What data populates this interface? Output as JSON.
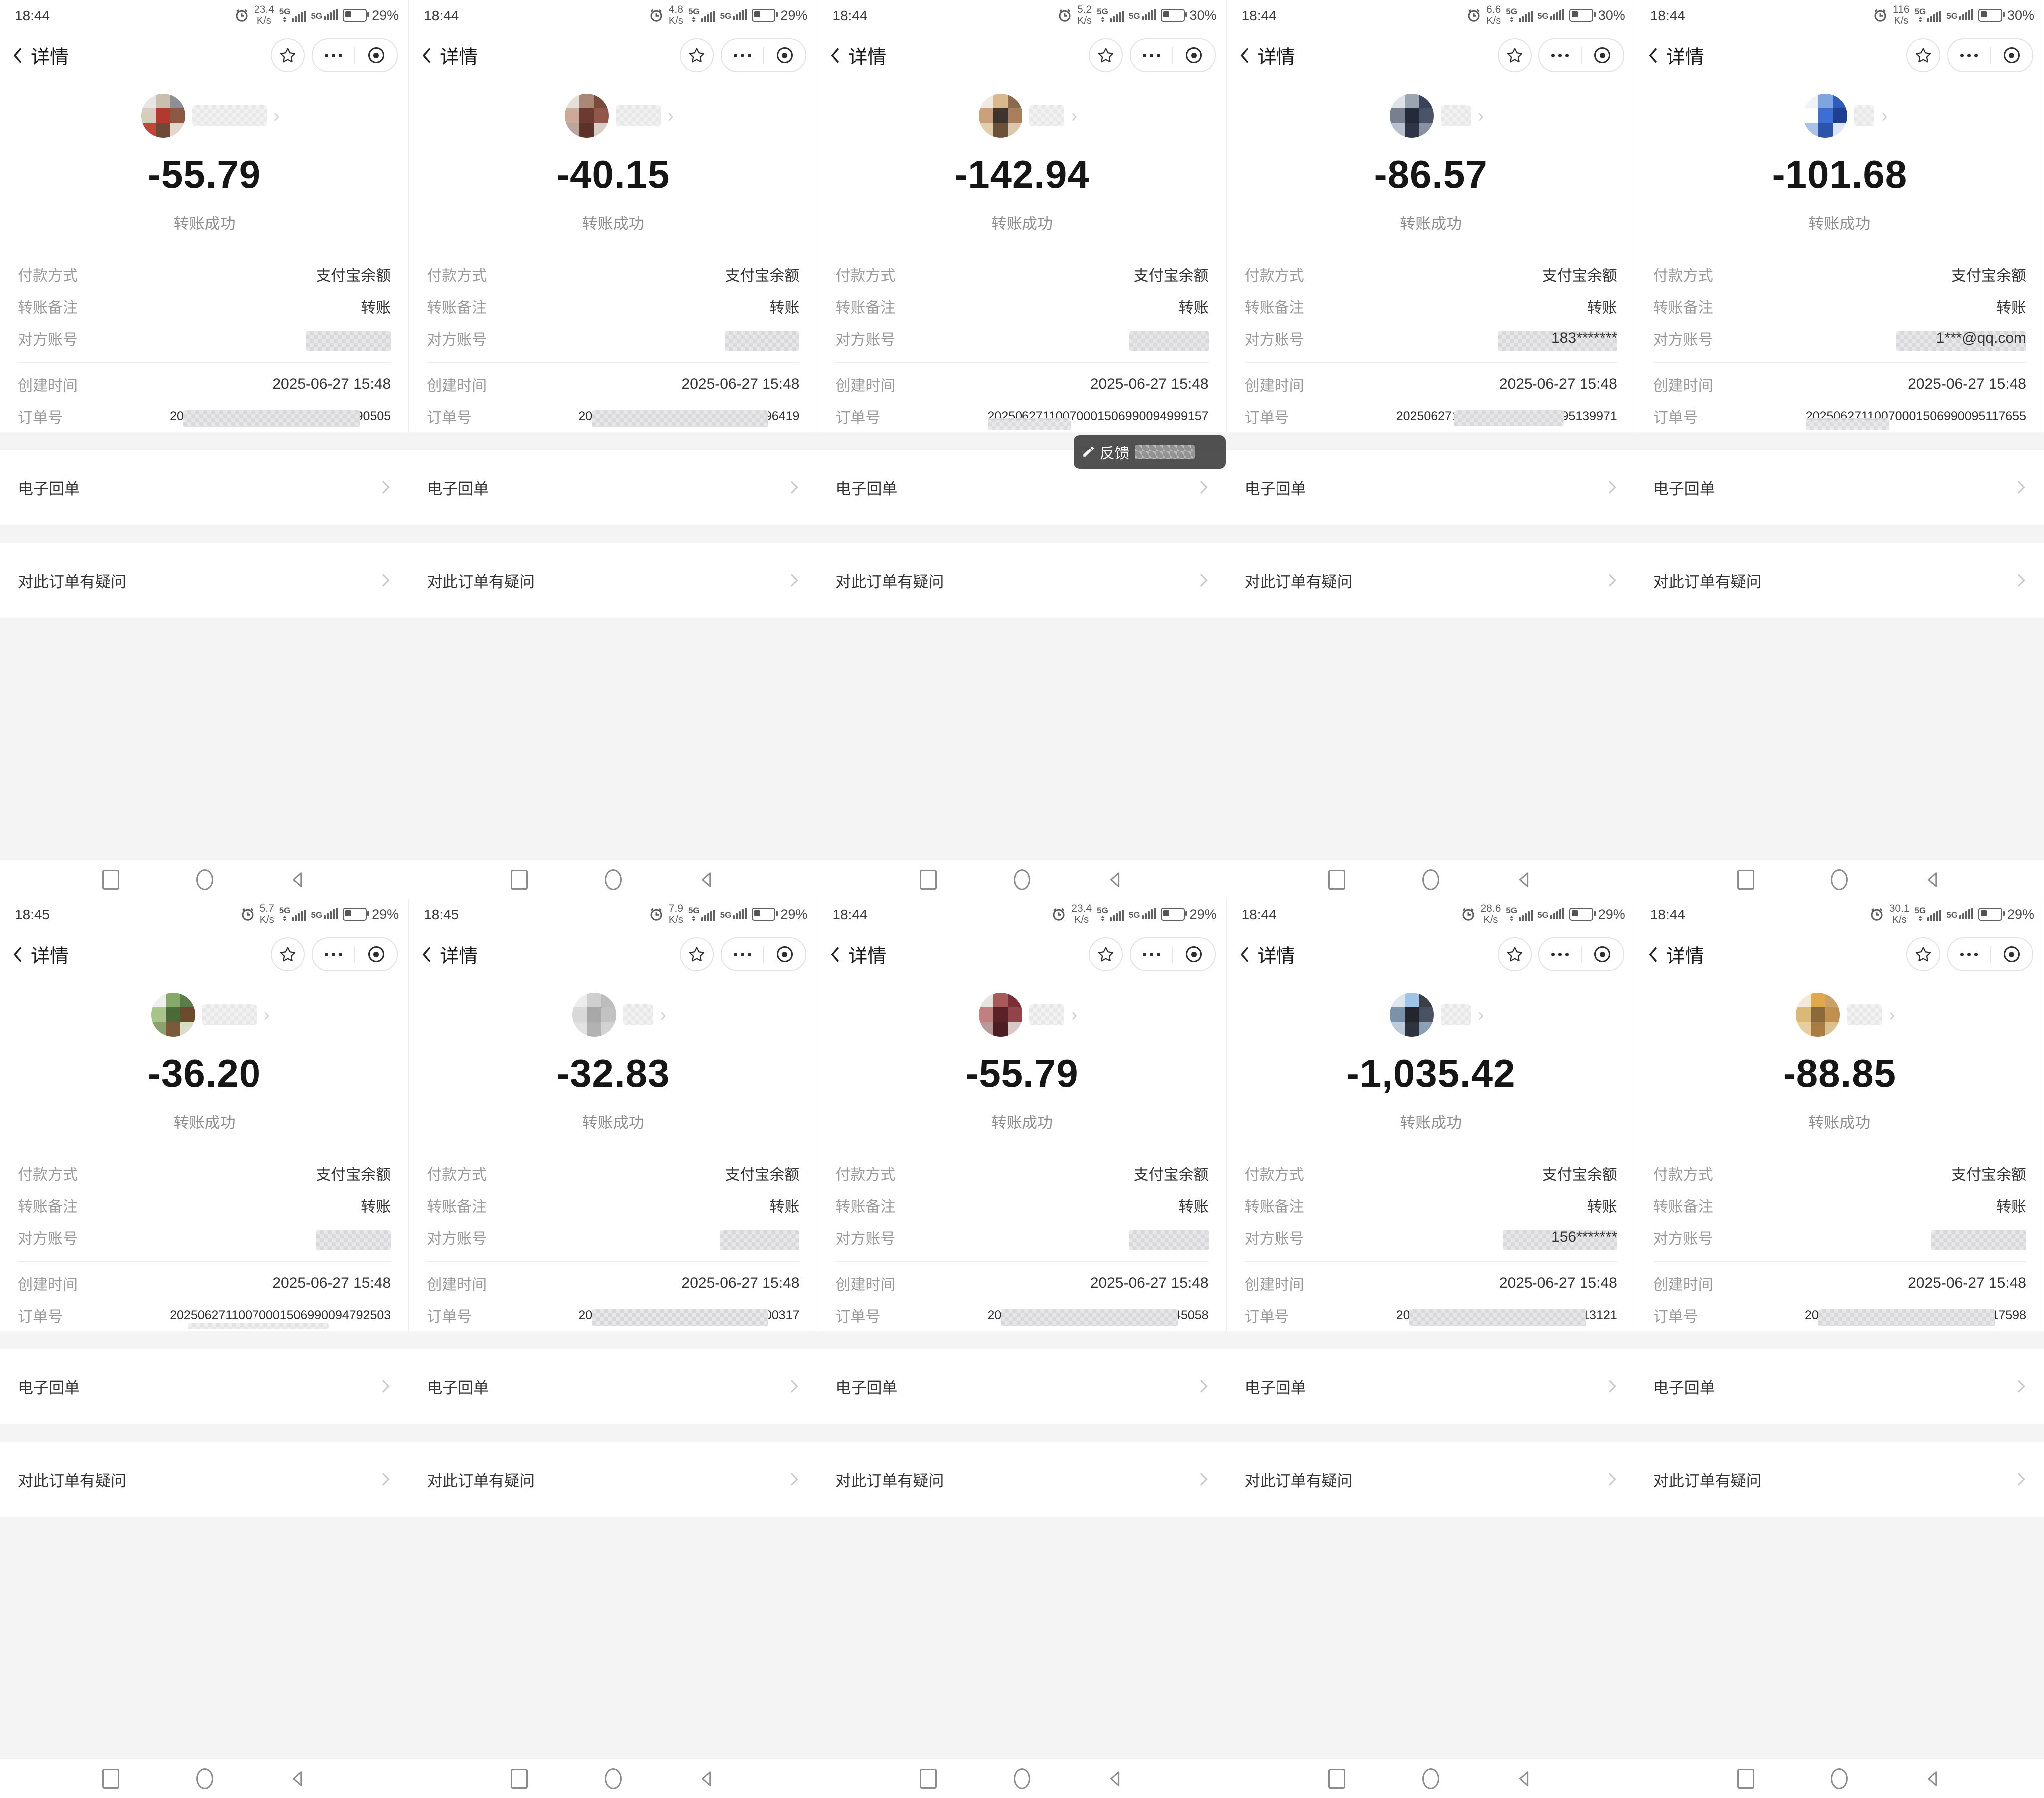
{
  "shared": {
    "nav": {
      "back_label": "详情",
      "speed_unit": "K/s",
      "net": "5G"
    },
    "detail": {
      "status_label": "转账成功",
      "payment_method_label": "付款方式",
      "payment_method_value": "支付宝余额",
      "note_label": "转账备注",
      "note_value": "转账",
      "account_label": "对方账号",
      "created_label": "创建时间",
      "created_value": "2025-06-27 15:48",
      "order_label": "订单号"
    },
    "actions": {
      "receipt_label": "电子回单",
      "question_label": "对此订单有疑问"
    },
    "feedback": {
      "label": "反馈"
    },
    "colors": {
      "accent_gray_bg": "#f4f4f5",
      "text_dark": "#1a1a1a",
      "text_gray": "#9a9a9a",
      "feedback_bg": "#3e3e3e"
    }
  },
  "screens": [
    {
      "time": "18:44",
      "speed": "23.4",
      "battery": "29%",
      "amount": "-55.79",
      "account_text": "",
      "account_blur_w": 170,
      "order_no": "20250627110070001506990094790505",
      "order_blur": "heavy",
      "name_blur_w": 150,
      "feedback": false,
      "avatar": [
        "#e8e6e2",
        "#c9bfae",
        "#8c8f96",
        "#d6cdbd",
        "#b03a2e",
        "#8a5a44",
        "#c24538",
        "#6e4a36",
        "#e0d8cc"
      ]
    },
    {
      "time": "18:44",
      "speed": "4.8",
      "battery": "29%",
      "amount": "-40.15",
      "account_text": "",
      "account_blur_w": 150,
      "order_no": "20250627110070001506990084796419",
      "order_blur": "heavy",
      "name_blur_w": 90,
      "feedback": false,
      "avatar": [
        "#e5e0da",
        "#aa8878",
        "#7a4a3c",
        "#ccaa99",
        "#6b3a30",
        "#93564a",
        "#b8a79a",
        "#5c3228",
        "#d8cec6"
      ]
    },
    {
      "time": "18:44",
      "speed": "5.2",
      "battery": "30%",
      "amount": "-142.94",
      "account_text": "",
      "account_blur_w": 160,
      "order_no": "20250627110070001506990094999157",
      "order_blur": "left",
      "name_blur_w": 70,
      "feedback": true,
      "avatar": [
        "#efe9e1",
        "#d9b98c",
        "#8a6a4f",
        "#c9a17b",
        "#3d342e",
        "#a87f5c",
        "#e3cfae",
        "#6b5138",
        "#d9c8ae"
      ]
    },
    {
      "time": "18:44",
      "speed": "6.6",
      "battery": "30%",
      "amount": "-86.57",
      "account_text": "183*******",
      "account_blur_w": 240,
      "order_no": "20250627110070001506990095139971",
      "order_blur": "mid",
      "name_blur_w": 60,
      "feedback": false,
      "avatar": [
        "#dfe3e8",
        "#9aa4b2",
        "#39435a",
        "#76808f",
        "#232a3a",
        "#4a5468",
        "#b8c0cc",
        "#2e3548",
        "#8892a2"
      ]
    },
    {
      "time": "18:44",
      "speed": "116",
      "battery": "30%",
      "amount": "-101.68",
      "account_text": "1***@qq.com",
      "account_blur_w": 260,
      "order_no": "20250627110070001506990095117655",
      "order_blur": "left",
      "name_blur_w": 40,
      "feedback": false,
      "avatar": [
        "#eef2fa",
        "#7fa4e0",
        "#2f5cb8",
        "#ffffff",
        "#3b6fd4",
        "#1e3f8f",
        "#a9c2ec",
        "#2c54aa",
        "#dce6f8"
      ]
    },
    {
      "time": "18:45",
      "speed": "5.7",
      "battery": "29%",
      "amount": "-36.20",
      "account_text": "",
      "account_blur_w": 150,
      "order_no": "20250627110070001506990094792503",
      "order_blur": "none",
      "name_blur_w": 110,
      "feedback": false,
      "avatar": [
        "#eef0ea",
        "#86a868",
        "#5a7d4a",
        "#a8c48a",
        "#4a6a3a",
        "#6b4a2e",
        "#8aa06e",
        "#7a5a38",
        "#d8e0cc"
      ]
    },
    {
      "time": "18:45",
      "speed": "7.9",
      "battery": "29%",
      "amount": "-32.83",
      "account_text": "",
      "account_blur_w": 160,
      "order_no": "20250627110070001506990094800317",
      "order_blur": "heavy",
      "name_blur_w": 60,
      "feedback": false,
      "avatar": [
        "#ececec",
        "#cfcfcf",
        "#bdbdbd",
        "#d8d8d8",
        "#a8a8a8",
        "#c2c2c2",
        "#e2e2e2",
        "#b2b2b2",
        "#d2d2d2"
      ]
    },
    {
      "time": "18:44",
      "speed": "23.4",
      "battery": "29%",
      "amount": "-55.79",
      "account_text": "",
      "account_blur_w": 160,
      "order_no": "20250627110070001506990094745058",
      "order_blur": "heavy",
      "name_blur_w": 70,
      "feedback": false,
      "avatar": [
        "#e8e2e0",
        "#a85a5a",
        "#7a2e35",
        "#c08080",
        "#5a2228",
        "#93444a",
        "#b89a9a",
        "#4a1e22",
        "#d8c8c8"
      ]
    },
    {
      "time": "18:44",
      "speed": "28.6",
      "battery": "29%",
      "amount": "-1,035.42",
      "account_text": "156*******",
      "account_blur_w": 230,
      "order_no": "20250627110070001506990095013121",
      "order_blur": "heavy",
      "name_blur_w": 60,
      "feedback": false,
      "avatar": [
        "#dfe6ee",
        "#9fc4e8",
        "#3a3f4a",
        "#7a92a8",
        "#23262e",
        "#4a5160",
        "#b8cadb",
        "#2e3340",
        "#8aa0b5"
      ]
    },
    {
      "time": "18:44",
      "speed": "30.1",
      "battery": "29%",
      "amount": "-88.85",
      "account_text": "",
      "account_blur_w": 190,
      "order_no": "20250627110070001506990098417598",
      "order_blur": "heavy",
      "name_blur_w": 70,
      "feedback": false,
      "avatar": [
        "#f2ead8",
        "#e0a94f",
        "#caa06a",
        "#d9b878",
        "#8a6a3a",
        "#c09050",
        "#e8cfa0",
        "#a87c42",
        "#dcc290"
      ]
    }
  ]
}
